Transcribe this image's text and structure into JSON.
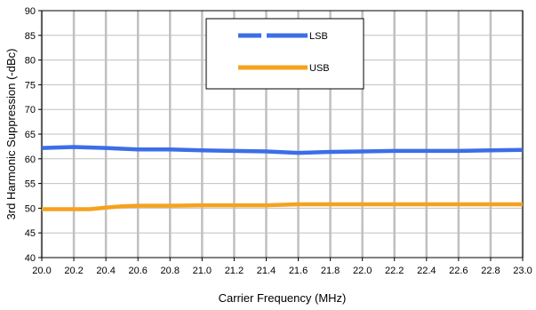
{
  "chart_data": {
    "type": "line",
    "title": "",
    "xlabel": "Carrier Frequency (MHz)",
    "ylabel": "3rd Harmonic Suppression (-dBc)",
    "xlim": [
      20.0,
      23.0
    ],
    "ylim": [
      40,
      90
    ],
    "x_ticks": [
      "20.0",
      "20.2",
      "20.4",
      "20.6",
      "20.8",
      "21.0",
      "21.2",
      "21.4",
      "21.6",
      "21.8",
      "22.0",
      "22.2",
      "22.4",
      "22.6",
      "22.8",
      "23.0"
    ],
    "y_ticks": [
      "40",
      "45",
      "50",
      "55",
      "60",
      "65",
      "70",
      "75",
      "80",
      "85",
      "90"
    ],
    "grid": true,
    "legend_position": "top-center",
    "series": [
      {
        "name": "LSB",
        "color": "#3b6ee8",
        "x": [
          20.0,
          20.2,
          20.4,
          20.6,
          20.8,
          21.0,
          21.2,
          21.4,
          21.6,
          21.8,
          22.0,
          22.2,
          22.4,
          22.6,
          22.8,
          23.0
        ],
        "y": [
          62.2,
          62.4,
          62.2,
          61.9,
          61.9,
          61.7,
          61.6,
          61.5,
          61.2,
          61.4,
          61.5,
          61.6,
          61.6,
          61.6,
          61.7,
          61.8
        ]
      },
      {
        "name": "USB",
        "color": "#f5a21e",
        "x": [
          20.0,
          20.2,
          20.3,
          20.4,
          20.5,
          20.6,
          20.8,
          21.0,
          21.2,
          21.4,
          21.6,
          21.8,
          22.0,
          22.2,
          22.4,
          22.6,
          22.8,
          23.0
        ],
        "y": [
          49.8,
          49.8,
          49.8,
          50.1,
          50.4,
          50.5,
          50.5,
          50.6,
          50.6,
          50.6,
          50.8,
          50.8,
          50.8,
          50.8,
          50.8,
          50.8,
          50.8,
          50.8
        ]
      }
    ]
  }
}
